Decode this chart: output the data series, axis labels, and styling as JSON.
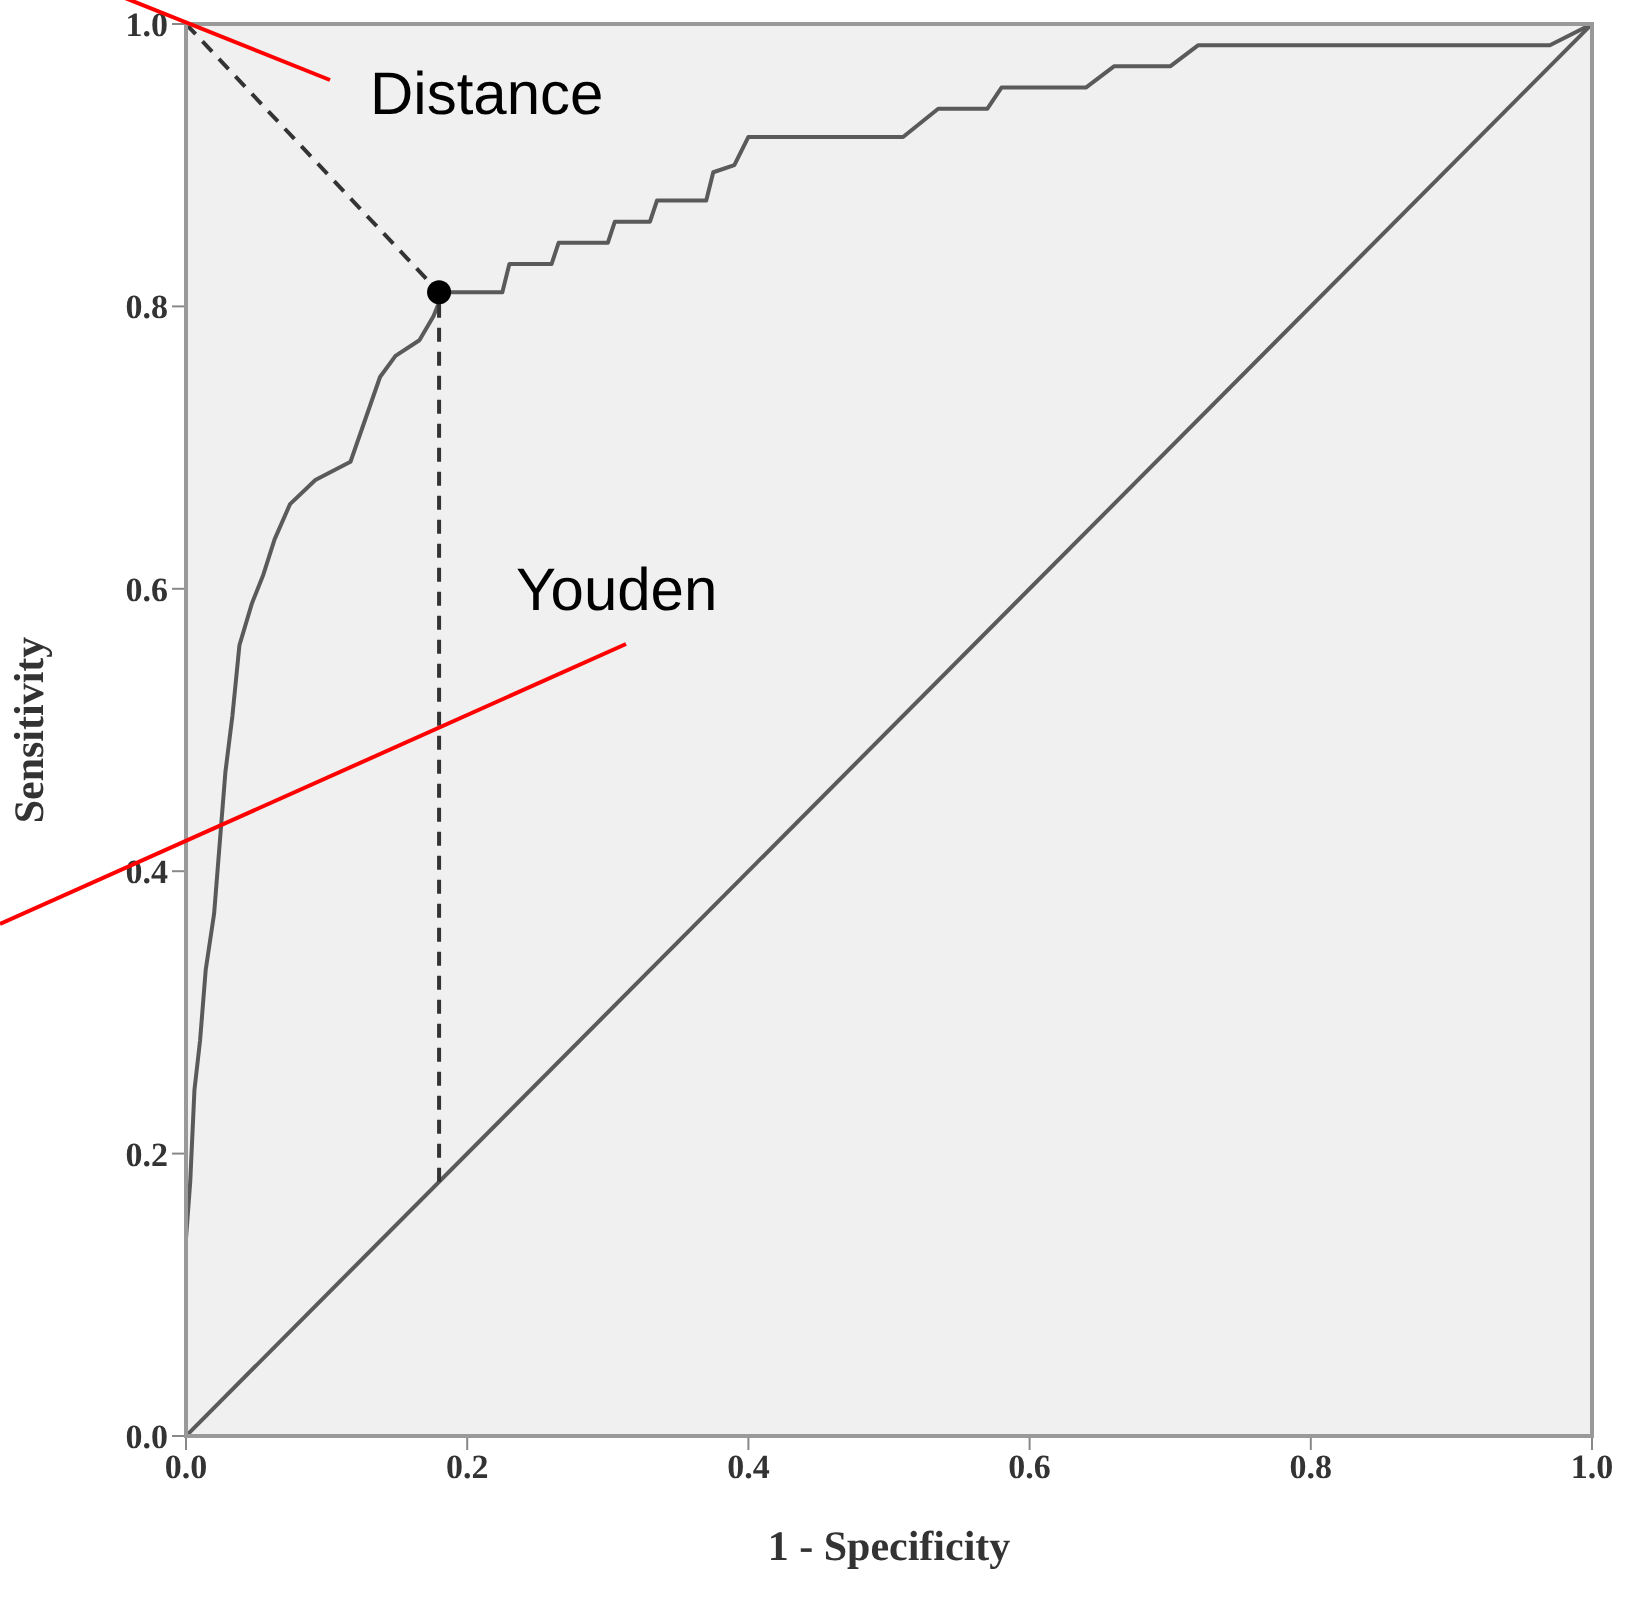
{
  "chart_data": {
    "type": "line",
    "xlabel": "1 - Specificity",
    "ylabel": "Sensitivity",
    "xlim": [
      0,
      1
    ],
    "ylim": [
      0,
      1
    ],
    "xticks": [
      {
        "value": 0,
        "label": "0.0"
      },
      0.2,
      0.4,
      0.6,
      0.8,
      {
        "value": 1,
        "label": "1.0"
      }
    ],
    "yticks": [
      {
        "value": 0,
        "label": "0.0"
      },
      0.2,
      0.4,
      0.6,
      0.8,
      {
        "value": 1,
        "label": "1.0"
      }
    ],
    "grid": false,
    "marker": "none",
    "annotations": [
      "Distance",
      "Youden"
    ],
    "series": [
      {
        "color": "#5a5a5a",
        "line_style": "solid",
        "x": [
          0,
          0,
          0.003,
          0.006,
          0.01,
          0.014,
          0.02,
          0.024,
          0.028,
          0.033,
          0.038,
          0.047,
          0.055,
          0.063,
          0.074,
          0.092,
          0.117,
          0.124,
          0.131,
          0.138,
          0.149,
          0.166,
          0.176,
          0.183,
          0.225,
          0.23,
          0.26,
          0.265,
          0.3,
          0.305,
          0.33,
          0.335,
          0.37,
          0.375,
          0.39,
          0.4,
          0.51,
          0.535,
          0.57,
          0.58,
          0.64,
          0.66,
          0.7,
          0.72,
          0.97,
          1
        ],
        "values": [
          0,
          0.14,
          0.18,
          0.245,
          0.28,
          0.33,
          0.37,
          0.42,
          0.47,
          0.51,
          0.56,
          0.59,
          0.61,
          0.635,
          0.66,
          0.677,
          0.69,
          0.71,
          0.73,
          0.75,
          0.765,
          0.776,
          0.793,
          0.81,
          0.81,
          0.83,
          0.83,
          0.845,
          0.845,
          0.86,
          0.86,
          0.875,
          0.875,
          0.895,
          0.9,
          0.92,
          0.92,
          0.94,
          0.94,
          0.955,
          0.955,
          0.97,
          0.97,
          0.985,
          0.985,
          1
        ]
      },
      {
        "color": "#5a5a5a",
        "line_style": "solid",
        "x": [
          0,
          1
        ],
        "values": [
          0,
          1
        ]
      },
      {
        "color": "#333333",
        "line_style": "dashed",
        "x": [
          0,
          0.18
        ],
        "values": [
          1,
          0.81
        ]
      },
      {
        "color": "#333333",
        "line_style": "dashed",
        "x": [
          0.18,
          0.18
        ],
        "values": [
          0.18,
          0.81
        ]
      },
      {
        "type": "scatter",
        "marker": "circle",
        "color": "#000000",
        "x": [
          0.18
        ],
        "values": [
          0.81
        ]
      }
    ]
  }
}
